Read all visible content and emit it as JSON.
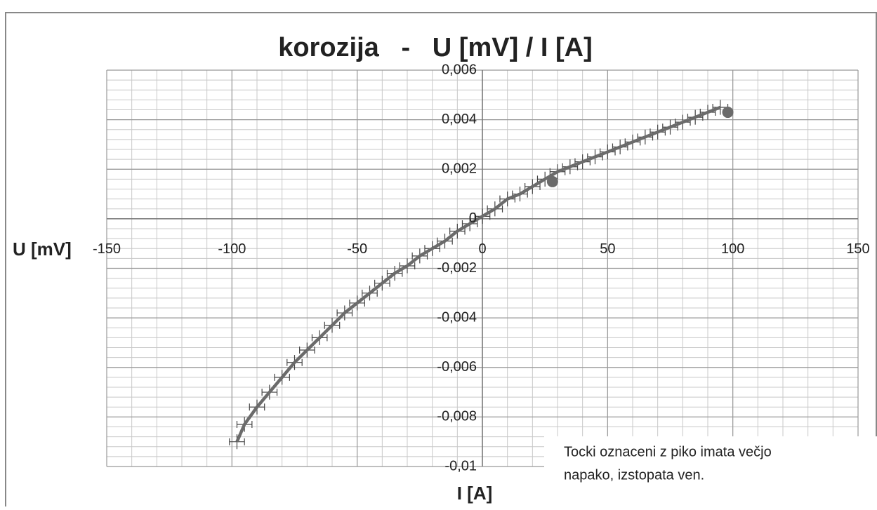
{
  "chart_data": {
    "type": "scatter",
    "title": "korozija   -   U [mV] / I [A]",
    "x_label": "I [A]",
    "y_label": "U [mV]",
    "annotation": [
      "Tocki oznaceni z piko imata večjo",
      "napako, izstopata ven."
    ],
    "xlim": [
      -150,
      150
    ],
    "xticks": [
      -150,
      -100,
      -50,
      0,
      50,
      100,
      150
    ],
    "ylim": [
      -0.01,
      0.006
    ],
    "yticks": [
      {
        "value": -0.01,
        "label": "-0,01"
      },
      {
        "value": -0.008,
        "label": "-0,008"
      },
      {
        "value": -0.006,
        "label": "-0,006"
      },
      {
        "value": -0.004,
        "label": "-0,004"
      },
      {
        "value": -0.002,
        "label": "-0,002"
      },
      0,
      {
        "value": 0.002,
        "label": "0,002"
      },
      {
        "value": 0.004,
        "label": "0,004"
      },
      {
        "value": 0.006,
        "label": "0,006"
      }
    ],
    "minor_grid": {
      "x": 10,
      "y": 0.0004
    },
    "grid": true,
    "series": [
      {
        "color": "#6b6b6b",
        "marker": "none",
        "x": [
          -98,
          -95,
          -90,
          -85,
          -80,
          -75,
          -70,
          -65,
          -60,
          -55,
          -50,
          -45,
          -40,
          -35,
          -30,
          -25,
          -20,
          -15,
          -10,
          -5,
          0,
          5,
          10,
          15,
          20,
          25,
          30,
          35,
          40,
          45,
          50,
          55,
          60,
          65,
          70,
          75,
          80,
          85,
          90,
          95
        ],
        "values": [
          -0.009,
          -0.0083,
          -0.0076,
          -0.007,
          -0.0064,
          -0.0058,
          -0.0053,
          -0.0048,
          -0.0043,
          -0.0038,
          -0.0034,
          -0.003,
          -0.0026,
          -0.0022,
          -0.0019,
          -0.0015,
          -0.0012,
          -0.0009,
          -0.0005,
          -0.0002,
          0.0001,
          0.0004,
          0.0008,
          0.001,
          0.0013,
          0.0016,
          0.0019,
          0.0021,
          0.0023,
          0.0025,
          0.0027,
          0.0029,
          0.0031,
          0.0033,
          0.0035,
          0.0037,
          0.0039,
          0.0041,
          0.0043,
          0.0045
        ],
        "x_error": 3,
        "y_error": 0.0003
      },
      {
        "color": "#6b6b6b",
        "marker": "circle",
        "x": [
          28,
          98
        ],
        "values": [
          0.0015,
          0.0043
        ]
      }
    ]
  }
}
